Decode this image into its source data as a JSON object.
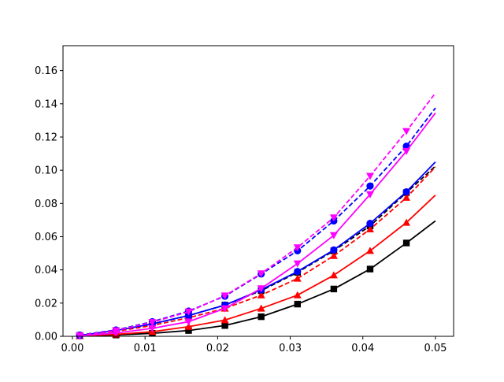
{
  "chart_data": {
    "type": "line",
    "title": "",
    "xlabel": "",
    "ylabel": "",
    "xlim": [
      -0.0013,
      0.0525
    ],
    "ylim": [
      0,
      0.175
    ],
    "grid": false,
    "xticks": [
      0.0,
      0.01,
      0.02,
      0.03,
      0.04,
      0.05
    ],
    "xtick_labels": [
      "0.00",
      "0.01",
      "0.02",
      "0.03",
      "0.04",
      "0.05"
    ],
    "yticks": [
      0.0,
      0.02,
      0.04,
      0.06,
      0.08,
      0.1,
      0.12,
      0.14,
      0.16
    ],
    "ytick_labels": [
      "0.00",
      "0.02",
      "0.04",
      "0.06",
      "0.08",
      "0.10",
      "0.12",
      "0.14",
      "0.16"
    ],
    "x": [
      0.001,
      0.006,
      0.011,
      0.016,
      0.021,
      0.026,
      0.031,
      0.036,
      0.041,
      0.046,
      0.05
    ],
    "series": [
      {
        "color": "#000000",
        "linestyle": "solid",
        "marker": "square",
        "values": [
          0.0003,
          0.0008,
          0.0018,
          0.0035,
          0.0065,
          0.0118,
          0.0194,
          0.0285,
          0.0405,
          0.0562,
          0.0695
        ]
      },
      {
        "color": "#000000",
        "linestyle": "dashed",
        "marker": "square",
        "values": [
          0.0005,
          0.0035,
          0.0075,
          0.0125,
          0.0188,
          0.0275,
          0.0385,
          0.0515,
          0.0665,
          0.0865,
          0.1025
        ]
      },
      {
        "color": "#ff0000",
        "linestyle": "solid",
        "marker": "triangle-up",
        "values": [
          0.0003,
          0.0012,
          0.0028,
          0.0058,
          0.0098,
          0.0168,
          0.0248,
          0.0368,
          0.0515,
          0.0685,
          0.085
        ]
      },
      {
        "color": "#ff0000",
        "linestyle": "dashed",
        "marker": "triangle-up",
        "values": [
          0.0005,
          0.003,
          0.0065,
          0.0112,
          0.0168,
          0.0248,
          0.0348,
          0.0485,
          0.0645,
          0.0835,
          0.102
        ]
      },
      {
        "color": "#0000ff",
        "linestyle": "solid",
        "marker": "circle",
        "values": [
          0.0005,
          0.0035,
          0.0075,
          0.0125,
          0.0188,
          0.028,
          0.039,
          0.052,
          0.068,
          0.087,
          0.105
        ]
      },
      {
        "color": "#0000ff",
        "linestyle": "dashed",
        "marker": "circle",
        "values": [
          0.0008,
          0.0038,
          0.0088,
          0.0152,
          0.0242,
          0.0375,
          0.0515,
          0.0695,
          0.0905,
          0.1145,
          0.1375
        ]
      },
      {
        "color": "#ff00ff",
        "linestyle": "solid",
        "marker": "triangle-down",
        "values": [
          0.0003,
          0.002,
          0.0048,
          0.0088,
          0.0168,
          0.0288,
          0.0438,
          0.0608,
          0.0855,
          0.1115,
          0.1345
        ]
      },
      {
        "color": "#ff00ff",
        "linestyle": "dashed",
        "marker": "triangle-down",
        "values": [
          0.0005,
          0.0035,
          0.0085,
          0.0148,
          0.0245,
          0.0378,
          0.0535,
          0.0715,
          0.0965,
          0.1235,
          0.1465
        ]
      }
    ]
  }
}
